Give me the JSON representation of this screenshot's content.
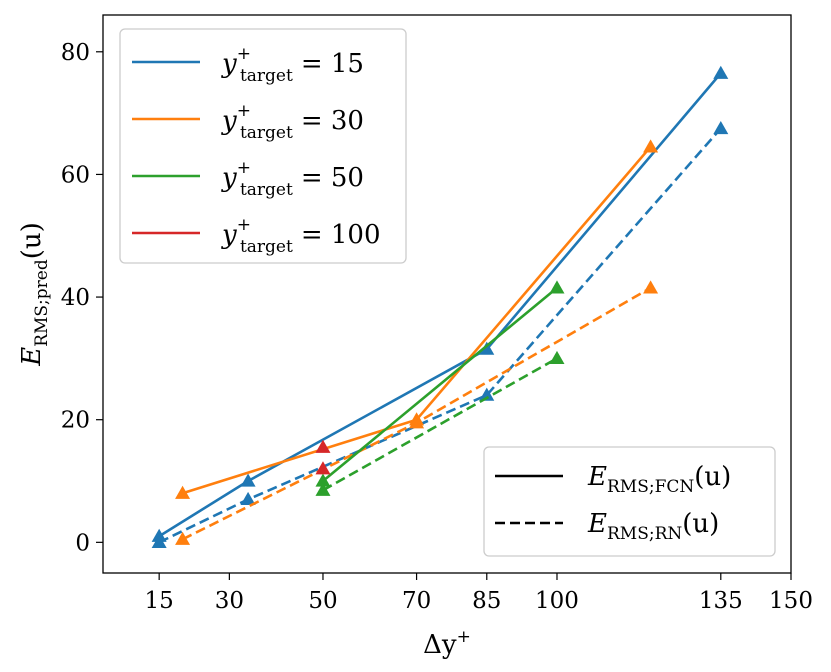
{
  "chart_data": {
    "type": "line",
    "xlabel_main": "Δy",
    "xlabel_sup": "+",
    "ylabel_main": "E",
    "ylabel_sub": "RMS;pred",
    "ylabel_arg": "(u)",
    "xlim": [
      3,
      150
    ],
    "ylim": [
      -5,
      86
    ],
    "xticks": [
      15,
      30,
      50,
      70,
      85,
      100,
      135,
      150
    ],
    "yticks": [
      0,
      20,
      40,
      60,
      80
    ],
    "grid": false,
    "color_legend": {
      "placement": "top-left",
      "entries": [
        {
          "prefix": "y",
          "sup": "+",
          "sub": "target",
          "value": "= 15",
          "color": "#1f77b4"
        },
        {
          "prefix": "y",
          "sup": "+",
          "sub": "target",
          "value": "= 30",
          "color": "#ff7f0e"
        },
        {
          "prefix": "y",
          "sup": "+",
          "sub": "target",
          "value": "= 50",
          "color": "#2ca02c"
        },
        {
          "prefix": "y",
          "sup": "+",
          "sub": "target",
          "value": "= 100",
          "color": "#d62728"
        }
      ]
    },
    "style_legend": {
      "placement": "bottom-right",
      "entries": [
        {
          "dash": "solid",
          "main": "E",
          "sub": "RMS;FCN",
          "arg": "(u)"
        },
        {
          "dash": "dashed",
          "main": "E",
          "sub": "RMS;RN",
          "arg": "(u)"
        }
      ]
    },
    "series": [
      {
        "target": 15,
        "model": "FCN",
        "dash": "solid",
        "color": "#1f77b4",
        "x": [
          15,
          34,
          85,
          135
        ],
        "y": [
          1,
          10,
          31.5,
          76.5
        ]
      },
      {
        "target": 15,
        "model": "RN",
        "dash": "dashed",
        "color": "#1f77b4",
        "x": [
          15,
          34,
          85,
          135
        ],
        "y": [
          0,
          7,
          24,
          67.5
        ]
      },
      {
        "target": 30,
        "model": "FCN",
        "dash": "solid",
        "color": "#ff7f0e",
        "x": [
          20,
          70,
          120
        ],
        "y": [
          8,
          20,
          64.5
        ]
      },
      {
        "target": 30,
        "model": "RN",
        "dash": "dashed",
        "color": "#ff7f0e",
        "x": [
          20,
          70,
          120
        ],
        "y": [
          0.5,
          19.5,
          41.5
        ]
      },
      {
        "target": 50,
        "model": "FCN",
        "dash": "solid",
        "color": "#2ca02c",
        "x": [
          50,
          100
        ],
        "y": [
          10,
          41.5
        ]
      },
      {
        "target": 50,
        "model": "RN",
        "dash": "dashed",
        "color": "#2ca02c",
        "x": [
          50,
          100
        ],
        "y": [
          8.5,
          30
        ]
      },
      {
        "target": 100,
        "model": "FCN",
        "dash": "solid",
        "color": "#d62728",
        "x": [
          50
        ],
        "y": [
          15.5
        ]
      },
      {
        "target": 100,
        "model": "RN",
        "dash": "dashed",
        "color": "#d62728",
        "x": [
          50
        ],
        "y": [
          12
        ]
      }
    ]
  }
}
